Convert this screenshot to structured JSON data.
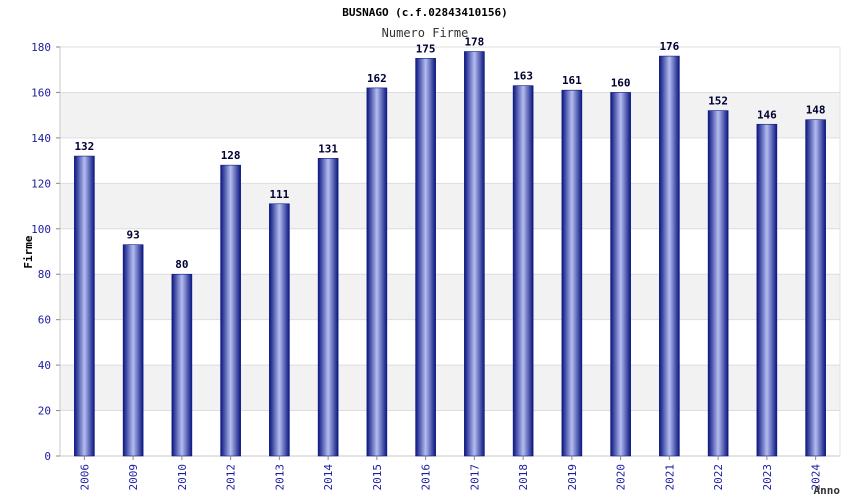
{
  "chart_data": {
    "type": "bar",
    "title": "BUSNAGO (c.f.02843410156)",
    "subtitle": "Numero Firme",
    "xlabel": "Anno",
    "ylabel": "Firme",
    "categories": [
      "2006",
      "2009",
      "2010",
      "2012",
      "2013",
      "2014",
      "2015",
      "2016",
      "2017",
      "2018",
      "2019",
      "2020",
      "2021",
      "2022",
      "2023",
      "2024"
    ],
    "series": [
      {
        "values": [
          132,
          93,
          80,
          128,
          111,
          131,
          162,
          175,
          178,
          163,
          161,
          160,
          176,
          152,
          146,
          148
        ]
      }
    ],
    "ylim": [
      0,
      180
    ],
    "yticks": [
      0,
      20,
      40,
      60,
      80,
      100,
      120,
      140,
      160,
      180
    ],
    "grid": true,
    "legend": "none",
    "colors": {
      "bar_dark": "#0b1680",
      "bar_light": "#b4bdf0",
      "band": "#f2f2f2",
      "gridline": "#dddddd",
      "tick_text": "#1c1ca0",
      "label_text": "#000033"
    }
  }
}
